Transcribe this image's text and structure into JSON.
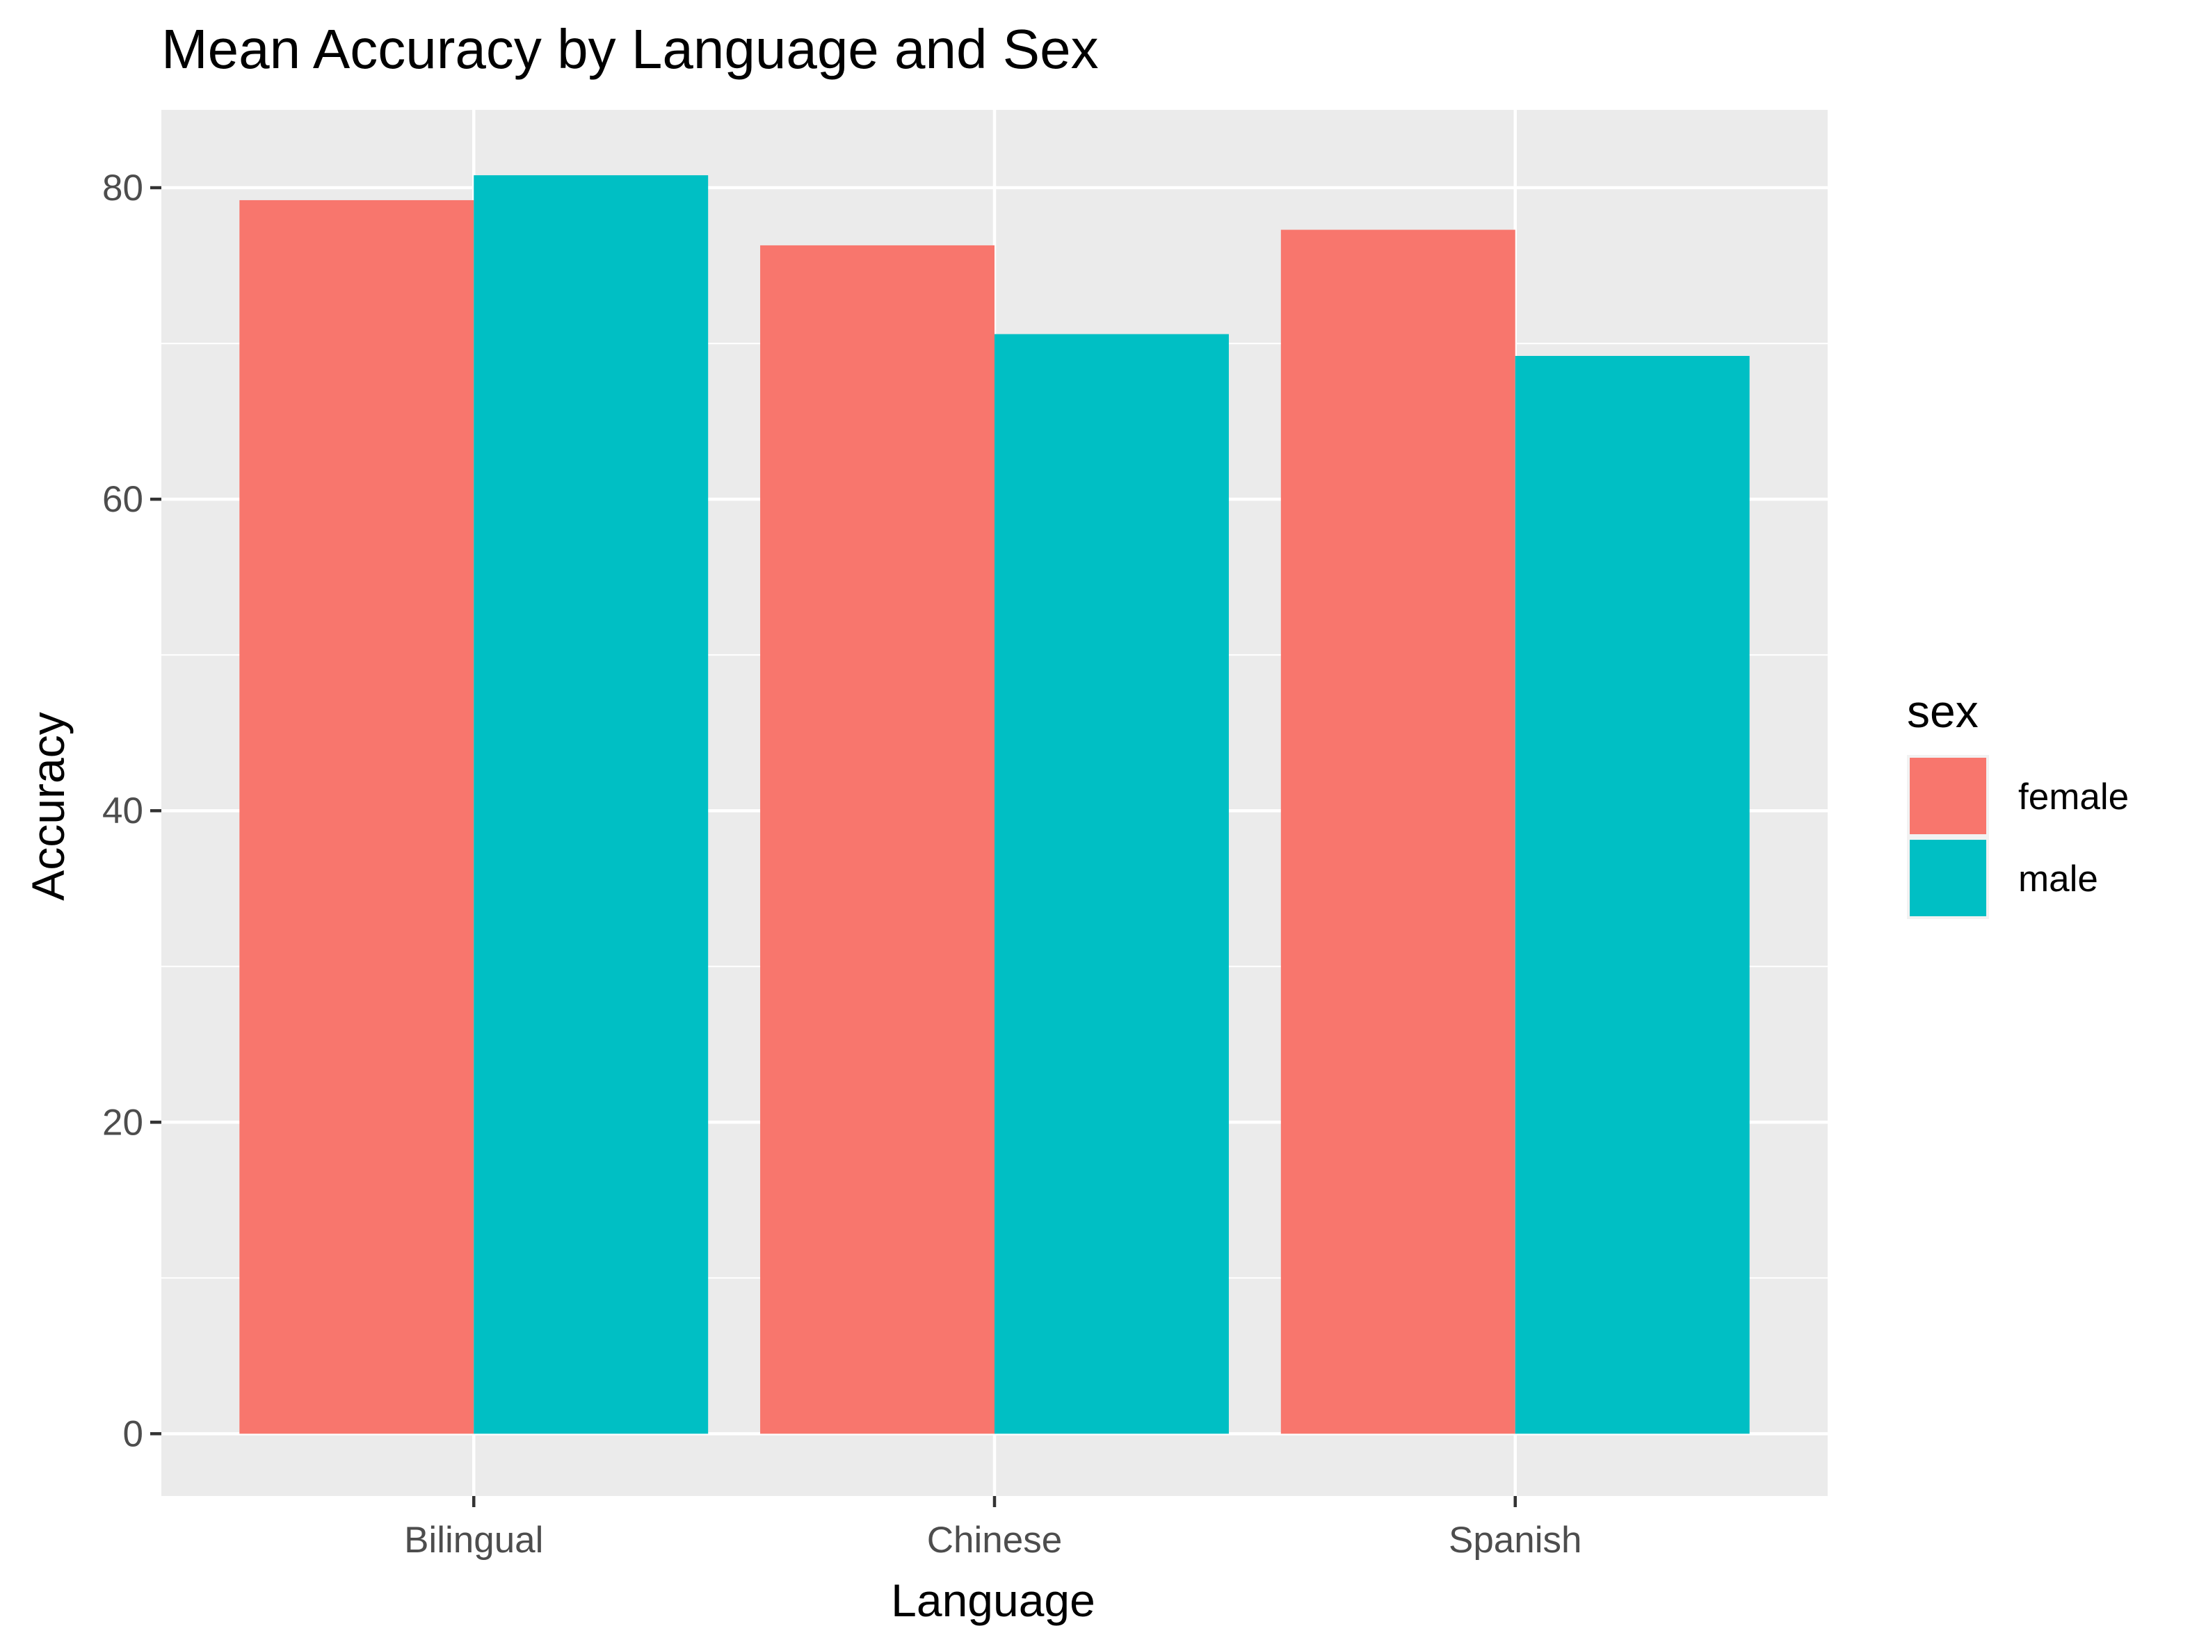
{
  "chart_data": {
    "type": "bar",
    "title": "Mean Accuracy by Language and Sex",
    "xlabel": "Language",
    "ylabel": "Accuracy",
    "categories": [
      "Bilingual",
      "Chinese",
      "Spanish"
    ],
    "series": [
      {
        "name": "female",
        "values": [
          79.2,
          76.3,
          77.3
        ],
        "color": "#F8766D"
      },
      {
        "name": "male",
        "values": [
          80.8,
          70.6,
          69.2
        ],
        "color": "#00BFC4"
      }
    ],
    "ylim": [
      -4,
      85
    ],
    "y_ticks": [
      0,
      20,
      40,
      60,
      80
    ],
    "y_tick_labels": [
      "0",
      "20",
      "40",
      "60",
      "80"
    ],
    "legend": {
      "title": "sex",
      "position": "right"
    },
    "grid": true,
    "panel_background": "#EBEBEB",
    "grid_color": "#FFFFFF"
  }
}
